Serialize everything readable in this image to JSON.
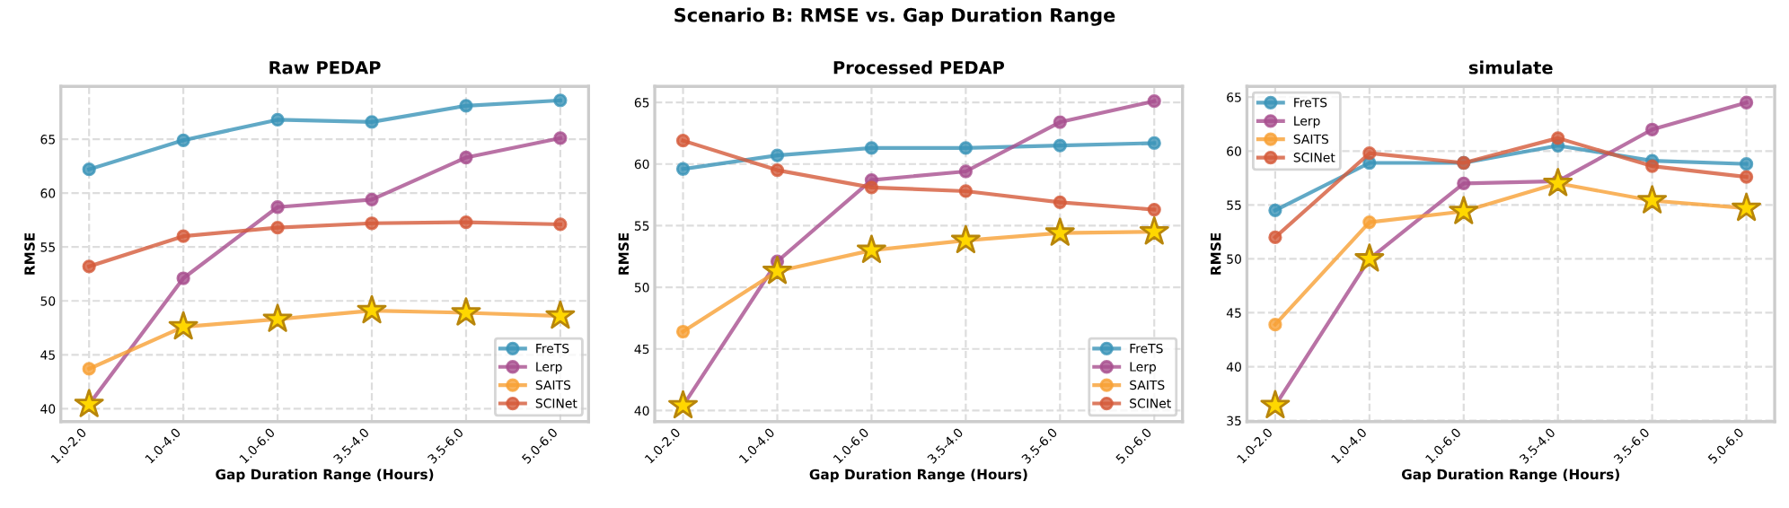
{
  "chart_data": [
    {
      "type": "line",
      "title": "Raw PEDAP",
      "xlabel": "Gap Duration Range (Hours)",
      "ylabel": "RMSE",
      "annotations": [
        "Scenario B: RMSE vs. Gap Duration Range"
      ],
      "categories": [
        "1.0-2.0",
        "1.0-4.0",
        "1.0-6.0",
        "3.5-4.0",
        "3.5-6.0",
        "5.0-6.0"
      ],
      "ylim": [
        38.8,
        69.9
      ],
      "yticks": [
        40,
        45,
        50,
        55,
        60,
        65
      ],
      "grid": true,
      "legend": "bottom right",
      "marker": "circle",
      "line_style": "solid",
      "series": [
        {
          "name": "FreTS",
          "color": "#3a93b8",
          "values": [
            62.2,
            64.9,
            66.8,
            66.6,
            68.1,
            68.6
          ]
        },
        {
          "name": "Lerp",
          "color": "#a84f8f",
          "values": [
            40.4,
            52.1,
            58.7,
            59.4,
            63.3,
            65.1
          ]
        },
        {
          "name": "SAITS",
          "color": "#f7a035",
          "values": [
            43.7,
            47.6,
            48.3,
            49.1,
            48.9,
            48.6
          ]
        },
        {
          "name": "SCINet",
          "color": "#d45a3a",
          "values": [
            53.2,
            56.0,
            56.8,
            57.2,
            57.3,
            57.1
          ]
        },
        {
          "type": "scatter",
          "marker": "star",
          "color": "#ffd700",
          "x": [
            "1.0-2.0",
            "1.0-4.0",
            "1.0-6.0",
            "3.5-4.0",
            "3.5-6.0",
            "5.0-6.0"
          ],
          "values": [
            40.4,
            47.6,
            48.3,
            49.1,
            48.9,
            48.6
          ]
        }
      ]
    },
    {
      "type": "line",
      "title": "Processed PEDAP",
      "xlabel": "Gap Duration Range (Hours)",
      "ylabel": "RMSE",
      "categories": [
        "1.0-2.0",
        "1.0-4.0",
        "1.0-6.0",
        "3.5-4.0",
        "3.5-6.0",
        "5.0-6.0"
      ],
      "ylim": [
        39.1,
        66.3
      ],
      "yticks": [
        40,
        45,
        50,
        55,
        60,
        65
      ],
      "grid": true,
      "legend": "bottom right",
      "marker": "circle",
      "line_style": "solid",
      "series": [
        {
          "name": "FreTS",
          "color": "#3a93b8",
          "values": [
            59.6,
            60.7,
            61.3,
            61.3,
            61.5,
            61.7
          ]
        },
        {
          "name": "Lerp",
          "color": "#a84f8f",
          "values": [
            40.4,
            52.1,
            58.7,
            59.4,
            63.4,
            65.1
          ]
        },
        {
          "name": "SAITS",
          "color": "#f7a035",
          "values": [
            46.4,
            51.3,
            53.0,
            53.8,
            54.4,
            54.5
          ]
        },
        {
          "name": "SCINet",
          "color": "#d45a3a",
          "values": [
            61.9,
            59.5,
            58.1,
            57.8,
            56.9,
            56.3
          ]
        },
        {
          "type": "scatter",
          "marker": "star",
          "color": "#ffd700",
          "x": [
            "1.0-2.0",
            "1.0-4.0",
            "1.0-6.0",
            "3.5-4.0",
            "3.5-6.0",
            "5.0-6.0"
          ],
          "values": [
            40.4,
            51.3,
            53.0,
            53.8,
            54.4,
            54.5
          ]
        }
      ]
    },
    {
      "type": "line",
      "title": "simulate",
      "xlabel": "Gap Duration Range (Hours)",
      "ylabel": "RMSE",
      "categories": [
        "1.0-2.0",
        "1.0-4.0",
        "1.0-6.0",
        "3.5-4.0",
        "3.5-6.0",
        "5.0-6.0"
      ],
      "ylim": [
        34.9,
        66.0
      ],
      "yticks": [
        35,
        40,
        45,
        50,
        55,
        60,
        65
      ],
      "grid": true,
      "legend": "top left",
      "marker": "circle",
      "line_style": "solid",
      "series": [
        {
          "name": "FreTS",
          "color": "#3a93b8",
          "values": [
            54.5,
            58.9,
            58.9,
            60.5,
            59.1,
            58.8
          ]
        },
        {
          "name": "Lerp",
          "color": "#a84f8f",
          "values": [
            36.4,
            50.0,
            57.0,
            57.2,
            62.0,
            64.5
          ]
        },
        {
          "name": "SAITS",
          "color": "#f7a035",
          "values": [
            43.9,
            53.4,
            54.4,
            57.0,
            55.4,
            54.7
          ]
        },
        {
          "name": "SCINet",
          "color": "#d45a3a",
          "values": [
            52.0,
            59.8,
            58.9,
            61.2,
            58.6,
            57.6
          ]
        },
        {
          "type": "scatter",
          "marker": "star",
          "color": "#ffd700",
          "x": [
            "1.0-2.0",
            "1.0-4.0",
            "1.0-6.0",
            "3.5-4.0",
            "3.5-6.0",
            "5.0-6.0"
          ],
          "values": [
            36.4,
            50.0,
            54.4,
            57.0,
            55.4,
            54.7
          ]
        }
      ]
    }
  ]
}
